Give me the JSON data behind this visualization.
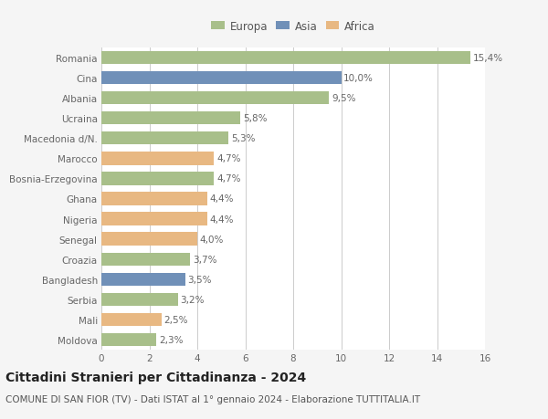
{
  "countries": [
    "Romania",
    "Cina",
    "Albania",
    "Ucraina",
    "Macedonia d/N.",
    "Marocco",
    "Bosnia-Erzegovina",
    "Ghana",
    "Nigeria",
    "Senegal",
    "Croazia",
    "Bangladesh",
    "Serbia",
    "Mali",
    "Moldova"
  ],
  "values": [
    15.4,
    10.0,
    9.5,
    5.8,
    5.3,
    4.7,
    4.7,
    4.4,
    4.4,
    4.0,
    3.7,
    3.5,
    3.2,
    2.5,
    2.3
  ],
  "labels": [
    "15,4%",
    "10,0%",
    "9,5%",
    "5,8%",
    "5,3%",
    "4,7%",
    "4,7%",
    "4,4%",
    "4,4%",
    "4,0%",
    "3,7%",
    "3,5%",
    "3,2%",
    "2,5%",
    "2,3%"
  ],
  "continents": [
    "Europa",
    "Asia",
    "Europa",
    "Europa",
    "Europa",
    "Africa",
    "Europa",
    "Africa",
    "Africa",
    "Africa",
    "Europa",
    "Asia",
    "Europa",
    "Africa",
    "Europa"
  ],
  "colors": {
    "Europa": "#a8bf8a",
    "Asia": "#7090b8",
    "Africa": "#e8b882"
  },
  "legend_items": [
    "Europa",
    "Asia",
    "Africa"
  ],
  "title": "Cittadini Stranieri per Cittadinanza - 2024",
  "subtitle": "COMUNE DI SAN FIOR (TV) - Dati ISTAT al 1° gennaio 2024 - Elaborazione TUTTITALIA.IT",
  "xlim": [
    0,
    16
  ],
  "xticks": [
    0,
    2,
    4,
    6,
    8,
    10,
    12,
    14,
    16
  ],
  "bg_color": "#f5f5f5",
  "bar_bg_color": "#ffffff",
  "grid_color": "#cccccc",
  "title_fontsize": 10,
  "subtitle_fontsize": 7.5,
  "label_fontsize": 7.5,
  "tick_fontsize": 7.5,
  "legend_fontsize": 8.5
}
